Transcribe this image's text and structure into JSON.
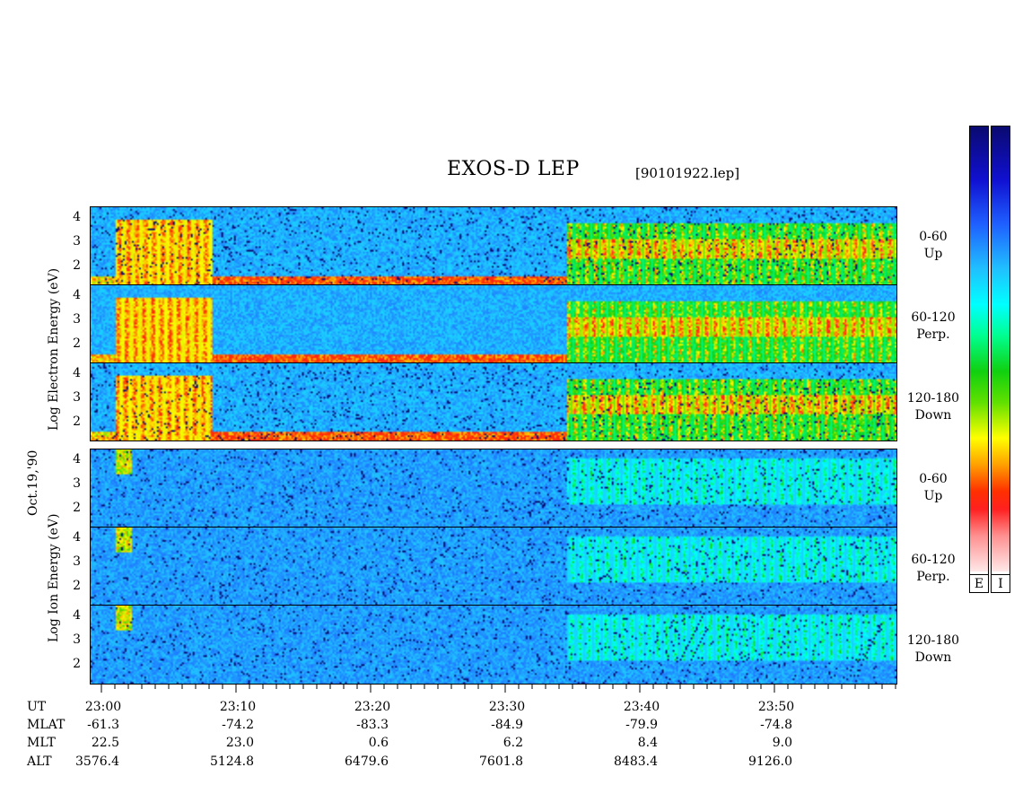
{
  "title": "EXOS-D LEP",
  "subtitle": "[90101922.lep]",
  "date_label": "Oct.19,'90",
  "electron_axis_label": "Log Electron Energy (eV)",
  "ion_axis_label": "Log Ion Energy (eV)",
  "electron_panels": [
    {
      "angle": "0-60",
      "dir": "Up"
    },
    {
      "angle": "60-120",
      "dir": "Perp."
    },
    {
      "angle": "120-180",
      "dir": "Down"
    }
  ],
  "ion_panels": [
    {
      "angle": "0-60",
      "dir": "Up"
    },
    {
      "angle": "60-120",
      "dir": "Perp."
    },
    {
      "angle": "120-180",
      "dir": "Down"
    }
  ],
  "y_ticks": [
    "4",
    "3",
    "2"
  ],
  "y_ticks_ion_bottom": [
    "4",
    "3",
    "2"
  ],
  "colorbar_labels": [
    "E",
    "I"
  ],
  "colors": {
    "background": "#0a1fd6",
    "low": "#0a0a8a",
    "high": "#ff2020"
  },
  "chart_data": {
    "type": "heatmap",
    "title": "EXOS-D LEP",
    "ylabel_electron": "Log Electron Energy (eV)",
    "ylabel_ion": "Log Ion Energy (eV)",
    "ylim": [
      1,
      4.2
    ],
    "x_ticks": [
      "23:00",
      "23:10",
      "23:20",
      "23:30",
      "23:40",
      "23:50"
    ],
    "ephemeris": {
      "rows": [
        {
          "name": "UT",
          "values": [
            "23:00",
            "23:10",
            "23:20",
            "23:30",
            "23:40",
            "23:50"
          ]
        },
        {
          "name": "MLAT",
          "values": [
            "-61.3",
            "-74.2",
            "-83.3",
            "-84.9",
            "-79.9",
            "-74.8"
          ]
        },
        {
          "name": "MLT",
          "values": [
            "22.5",
            "23.0",
            "0.6",
            "6.2",
            "8.4",
            "9.0"
          ]
        },
        {
          "name": "ALT",
          "values": [
            "3576.4",
            "5124.8",
            "6479.6",
            "7601.8",
            "8483.4",
            "9126.0"
          ]
        }
      ]
    }
  }
}
